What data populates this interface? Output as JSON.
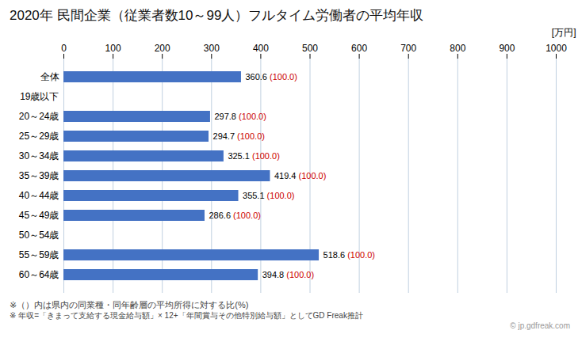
{
  "chart_data": {
    "type": "bar",
    "orientation": "horizontal",
    "title": "2020年 民間企業（従業者数10～99人）フルタイム労働者の平均年収",
    "xlabel": "[万円]",
    "categories": [
      "全体",
      "19歳以下",
      "20～24歳",
      "25～29歳",
      "30～34歳",
      "35～39歳",
      "40～44歳",
      "45～49歳",
      "50～54歳",
      "55～59歳",
      "60～64歳"
    ],
    "values": [
      360.6,
      null,
      297.8,
      294.7,
      325.1,
      419.4,
      355.1,
      286.6,
      null,
      518.6,
      394.8
    ],
    "ratio_labels": [
      "(100.0)",
      null,
      "(100.0)",
      "(100.0)",
      "(100.0)",
      "(100.0)",
      "(100.0)",
      "(100.0)",
      null,
      "(100.0)",
      "(100.0)"
    ],
    "color": "#4472C4",
    "xlim": [
      0,
      1000
    ],
    "xticks": [
      0,
      100,
      200,
      300,
      400,
      500,
      600,
      700,
      800,
      900,
      1000
    ],
    "grid": true,
    "data_labels": true,
    "footnotes": [
      "※（）内は県内の同業種・同年齢層の平均所得に対する比(%)",
      "※ 年収=「きまって支給する現金給与額」× 12+「年間賞与その他特別給与額」としてGD Freak推計"
    ],
    "watermark": "© jp.gdfreak.com"
  }
}
